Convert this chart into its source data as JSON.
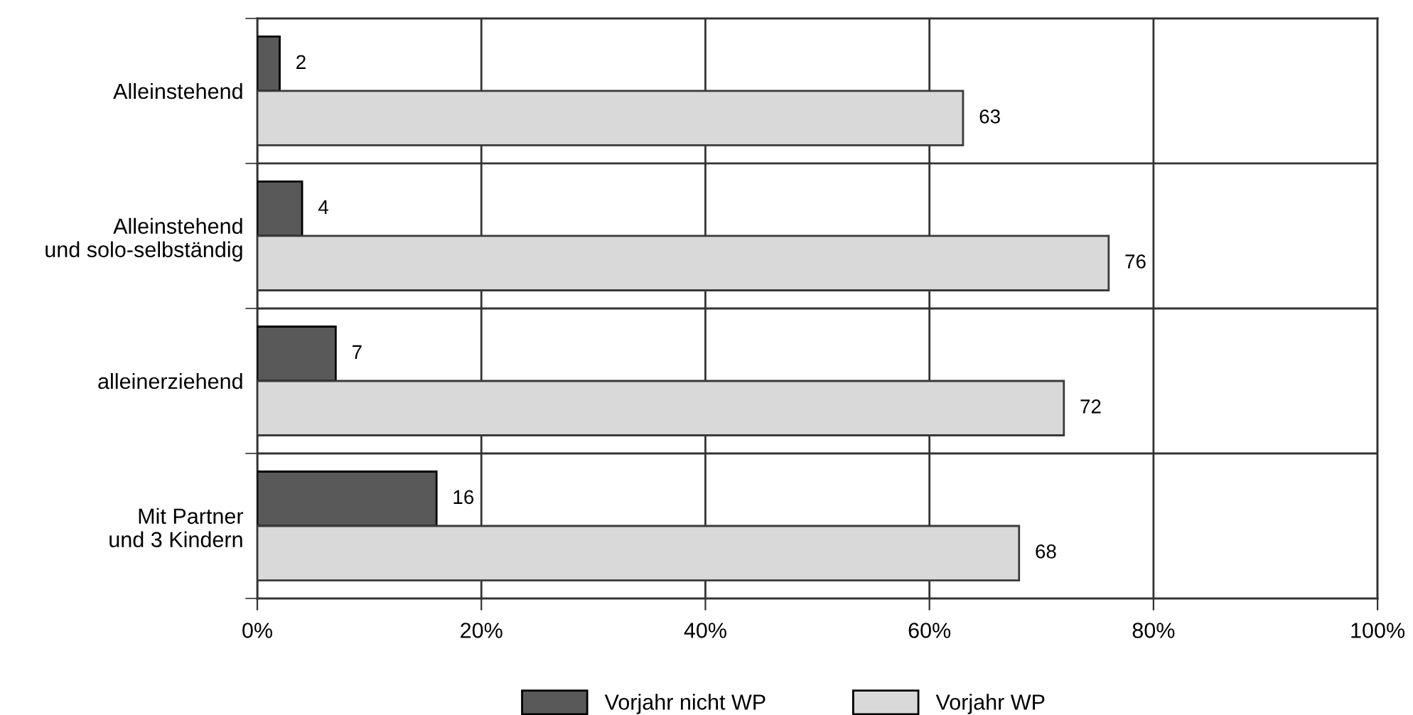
{
  "chart_data": {
    "type": "bar",
    "orientation": "horizontal",
    "categories": [
      "Alleinstehend",
      "Alleinstehend\nund solo-selbständig",
      "alleinerziehend",
      "Mit Partner\nund 3 Kindern"
    ],
    "series": [
      {
        "name": "Vorjahr nicht WP",
        "color": "#595959",
        "values": [
          2,
          4,
          7,
          16
        ]
      },
      {
        "name": "Vorjahr WP",
        "color": "#d9d9d9",
        "values": [
          63,
          76,
          72,
          68
        ]
      }
    ],
    "xlim": [
      0,
      100
    ],
    "xticks": [
      {
        "value": 0,
        "label": "0%"
      },
      {
        "value": 20,
        "label": "20%"
      },
      {
        "value": 40,
        "label": "40%"
      },
      {
        "value": 60,
        "label": "60%"
      },
      {
        "value": 80,
        "label": "80%"
      },
      {
        "value": 100,
        "label": "100%"
      }
    ],
    "grid": true,
    "legend": "bottom",
    "data_labels": true
  }
}
